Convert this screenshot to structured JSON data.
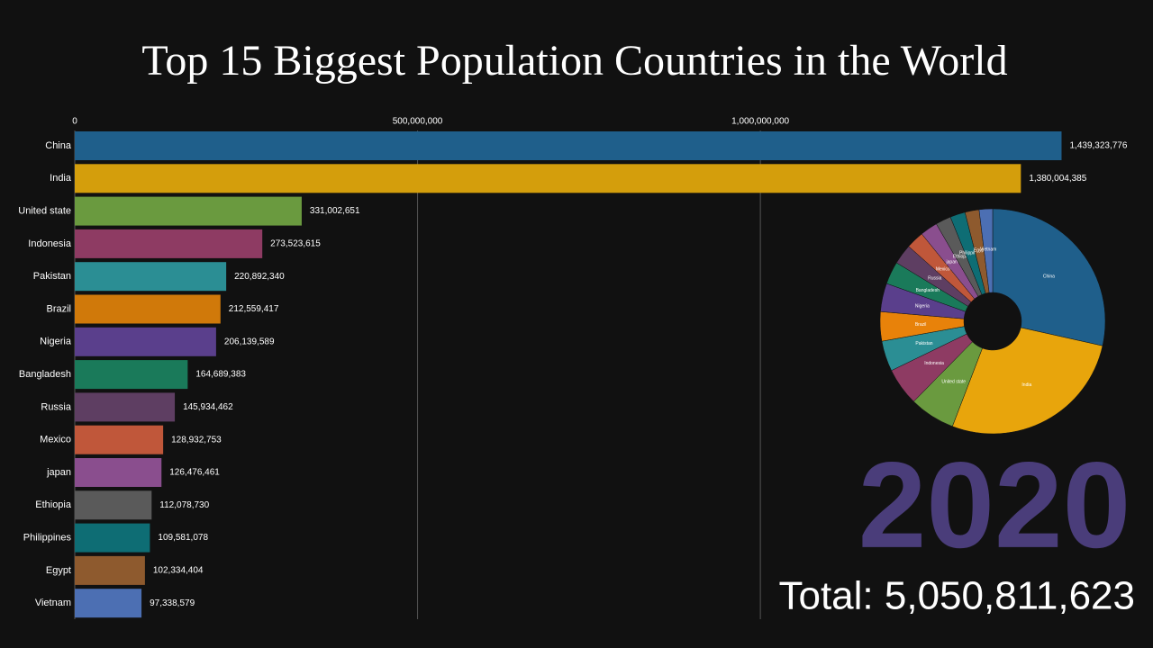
{
  "chart_data": [
    {
      "type": "bar",
      "orientation": "horizontal",
      "title": "Top 15 Biggest Population Countries in the World",
      "categories": [
        "China",
        "India",
        "United state",
        "Indonesia",
        "Pakistan",
        "Brazil",
        "Nigeria",
        "Bangladesh",
        "Russia",
        "Mexico",
        "japan",
        "Ethiopia",
        "Philippines",
        "Egypt",
        "Vietnam"
      ],
      "values": [
        1439323776,
        1380004385,
        331002651,
        273523615,
        220892340,
        212559417,
        206139589,
        164689383,
        145934462,
        128932753,
        126476461,
        112078730,
        109581078,
        102334404,
        97338579
      ],
      "value_labels": [
        "1,439,323,776",
        "1,380,004,385",
        "331,002,651",
        "273,523,615",
        "220,892,340",
        "212,559,417",
        "206,139,589",
        "164,689,383",
        "145,934,462",
        "128,932,753",
        "126,476,461",
        "112,078,730",
        "109,581,078",
        "102,334,404",
        "97,338,579"
      ],
      "colors": [
        "#1f5f8b",
        "#d49e0c",
        "#6a9a3f",
        "#8e3b63",
        "#2b8e94",
        "#d0790a",
        "#5a3f8c",
        "#1a7a5a",
        "#5e3e62",
        "#c0573a",
        "#8a4e8e",
        "#5a5a5a",
        "#0e6d74",
        "#8e5a2e",
        "#4c6fb3"
      ],
      "xlim": [
        0,
        1440000000
      ],
      "xticks": [
        0,
        {
          "value": 500000000,
          "label": "500,000,000"
        },
        {
          "value": 1000000000,
          "label": "1,000,000,000"
        }
      ],
      "grid": true,
      "annotations": [
        "2020",
        "Total: 5,050,811,623"
      ]
    },
    {
      "type": "pie",
      "categories": [
        "China",
        "India",
        "United state",
        "Indonesia",
        "Pakistan",
        "Brazil",
        "Nigeria",
        "Bangladesh",
        "Russia",
        "Mexico",
        "japan",
        "Ethiopia",
        "Philippines",
        "Egypt",
        "Vietnam"
      ],
      "values": [
        1439323776,
        1380004385,
        331002651,
        273523615,
        220892340,
        212559417,
        206139589,
        164689383,
        145934462,
        128932753,
        126476461,
        112078730,
        109581078,
        102334404,
        97338579
      ],
      "colors": [
        "#1f5f8b",
        "#e8a50c",
        "#6a9a3f",
        "#8e3b63",
        "#2b8e94",
        "#e8820a",
        "#5a3f8c",
        "#1a7a5a",
        "#5e3e62",
        "#c0573a",
        "#8a4e8e",
        "#5a5a5a",
        "#0e6d74",
        "#8e5a2e",
        "#4c6fb3"
      ]
    }
  ]
}
